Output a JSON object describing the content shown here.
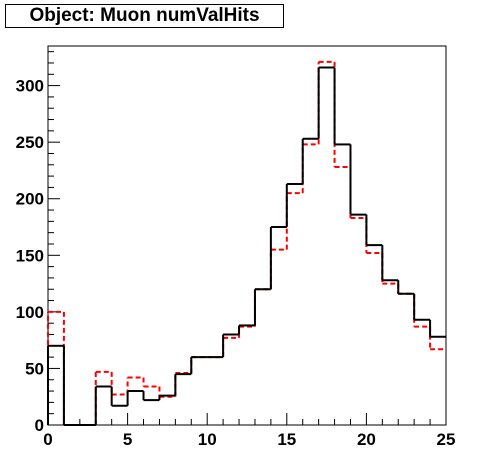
{
  "title_box": {
    "text": "Object: Muon numValHits"
  },
  "chart_data": {
    "type": "histogram",
    "title": "Object: Muon numValHits",
    "xlim": [
      0,
      25
    ],
    "ylim": [
      0,
      335
    ],
    "x_ticks": [
      "0",
      "5",
      "10",
      "15",
      "20",
      "25"
    ],
    "y_ticks": [
      "0",
      "50",
      "100",
      "150",
      "200",
      "250",
      "300"
    ],
    "bin_edges": [
      0,
      1,
      2,
      3,
      4,
      5,
      6,
      7,
      8,
      9,
      10,
      11,
      12,
      13,
      14,
      15,
      16,
      17,
      18,
      19,
      20,
      21,
      22,
      23,
      24,
      25
    ],
    "series": [
      {
        "style": "solid",
        "color": "#000000",
        "values": [
          70,
          0,
          0,
          34,
          17,
          30,
          22,
          26,
          45,
          60,
          60,
          80,
          88,
          120,
          175,
          213,
          253,
          316,
          248,
          186,
          159,
          128,
          116,
          93,
          78
        ]
      },
      {
        "style": "dashed",
        "color": "#ff0000",
        "values": [
          100,
          0,
          0,
          47,
          27,
          42,
          34,
          25,
          46,
          60,
          60,
          77,
          87,
          120,
          155,
          205,
          248,
          321,
          228,
          183,
          152,
          125,
          116,
          87,
          67
        ]
      }
    ]
  }
}
